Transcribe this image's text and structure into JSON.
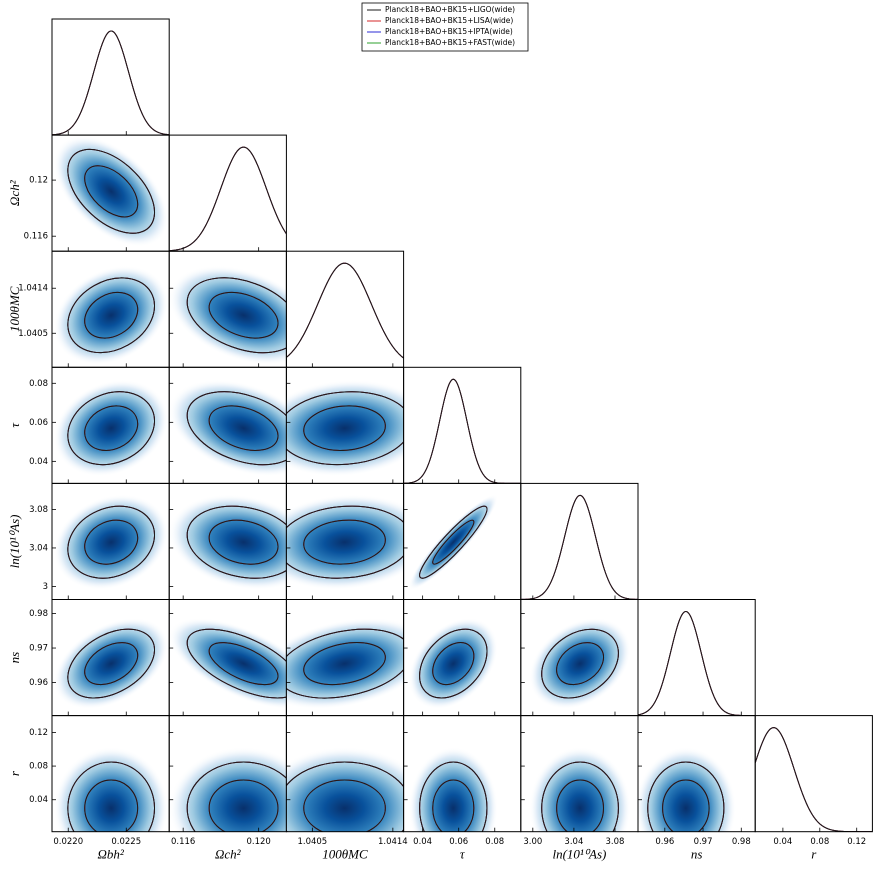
{
  "chart_data": {
    "type": "triangle",
    "series": [
      {
        "name": "Planck18+BAO+BK15+LIGO(wide)",
        "color": "#1a1a1a"
      },
      {
        "name": "Planck18+BAO+BK15+LISA(wide)",
        "color": "#d62728"
      },
      {
        "name": "Planck18+BAO+BK15+IPTA(wide)",
        "color": "#2b2bd6"
      },
      {
        "name": "Planck18+BAO+BK15+FAST(wide)",
        "color": "#2ca02c"
      }
    ],
    "parameters": [
      {
        "label": "Ωbh²",
        "mean": 0.02237,
        "sigma": 0.00015,
        "xlim": [
          0.02186,
          0.02287
        ],
        "xticks": [
          {
            "value": 0.022,
            "label": "0.0220"
          },
          0.0225
        ]
      },
      {
        "label": "Ωch²",
        "mean": 0.1192,
        "sigma": 0.0012,
        "xlim": [
          0.11526,
          0.12147
        ],
        "xticks": [
          0.116,
          {
            "value": 0.12,
            "label": "0.120"
          }
        ],
        "ylim": [
          0.11493,
          0.12321
        ],
        "yticks": [
          0.116,
          0.12
        ]
      },
      {
        "label": "100θMC",
        "mean": 1.04086,
        "sigma": 0.0003,
        "xlim": [
          1.04021,
          1.04152
        ],
        "xticks": [
          1.0405,
          1.0414
        ],
        "ylim": [
          1.03982,
          1.04214
        ],
        "yticks": [
          1.0405,
          1.0414
        ]
      },
      {
        "label": "τ",
        "mean": 0.057,
        "sigma": 0.0075,
        "xlim": [
          0.02944,
          0.09444
        ],
        "xticks": [
          0.04,
          0.06,
          0.08
        ],
        "ylim": [
          0.0287,
          0.0882
        ],
        "yticks": [
          0.04,
          0.06,
          0.08
        ]
      },
      {
        "label": "ln(10¹⁰As)",
        "mean": 3.046,
        "sigma": 0.015,
        "xlim": [
          2.9883,
          3.1024
        ],
        "xticks": [
          {
            "value": 3,
            "label": "3.00"
          },
          3.04,
          3.08
        ],
        "ylim": [
          2.9865,
          3.107
        ],
        "yticks": [
          3,
          3.04,
          3.08
        ]
      },
      {
        "label": "ns",
        "mean": 0.9655,
        "sigma": 0.004,
        "xlim": [
          0.95299,
          0.98364
        ],
        "xticks": [
          0.96,
          0.97,
          0.98
        ],
        "ylim": [
          0.95043,
          0.98406
        ],
        "yticks": [
          0.96,
          0.97,
          0.98
        ]
      },
      {
        "label": "r",
        "mean": 0.03,
        "sigma": 0.022,
        "xlim": [
          0.01,
          0.137
        ],
        "xticks": [
          0.04,
          0.08,
          0.12
        ],
        "ylim": [
          0.002,
          0.14
        ],
        "yticks": [
          0.04,
          0.08,
          0.12
        ]
      }
    ],
    "correlations": [
      [
        1,
        0,
        -0.5
      ],
      [
        2,
        0,
        0.25
      ],
      [
        2,
        1,
        -0.35
      ],
      [
        3,
        0,
        0.2
      ],
      [
        3,
        1,
        -0.35
      ],
      [
        3,
        2,
        0.1
      ],
      [
        4,
        0,
        0.2
      ],
      [
        4,
        1,
        -0.2
      ],
      [
        4,
        2,
        0.1
      ],
      [
        4,
        3,
        0.92
      ],
      [
        5,
        0,
        0.4
      ],
      [
        5,
        1,
        -0.6
      ],
      [
        5,
        2,
        0.3
      ],
      [
        5,
        3,
        0.35
      ],
      [
        5,
        4,
        0.3
      ],
      [
        6,
        0,
        0
      ],
      [
        6,
        1,
        0
      ],
      [
        6,
        2,
        0
      ],
      [
        6,
        3,
        0
      ],
      [
        6,
        4,
        0
      ],
      [
        6,
        5,
        0
      ]
    ]
  }
}
